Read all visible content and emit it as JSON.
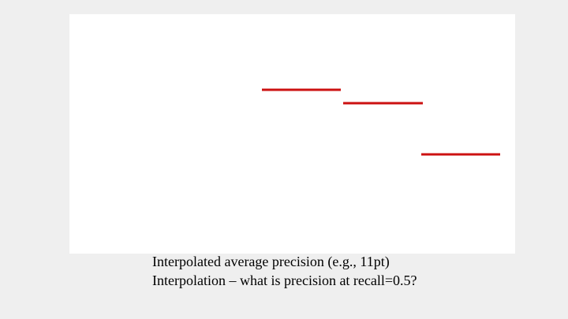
{
  "figure": {
    "segment_color": "#cc1111",
    "segment_count": 3
  },
  "caption": {
    "line1": "Interpolated average precision (e.g., 11pt)",
    "line2": "Interpolation – what is precision at recall=0.5?"
  }
}
